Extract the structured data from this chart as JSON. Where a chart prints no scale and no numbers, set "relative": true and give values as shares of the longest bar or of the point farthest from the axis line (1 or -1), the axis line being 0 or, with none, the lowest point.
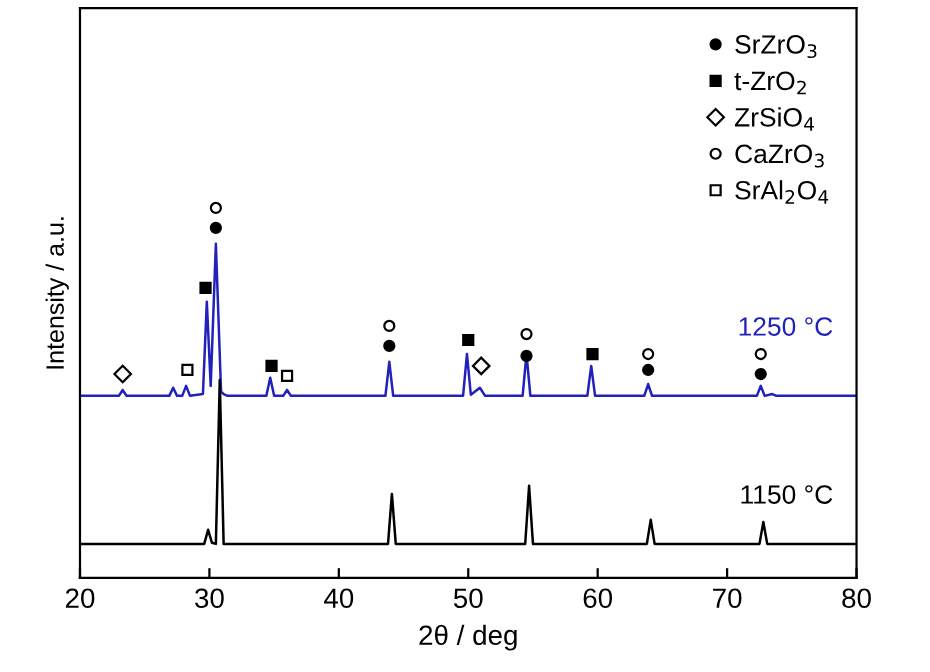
{
  "chart_data": {
    "type": "line",
    "relative": true,
    "xlabel": "2θ / deg",
    "ylabel": "Intensity / a.u.",
    "xlim": [
      20,
      80
    ],
    "xticks": [
      20,
      30,
      40,
      50,
      60,
      70,
      80
    ],
    "tick_labels": "x",
    "grid": false,
    "legend": "top right",
    "series": [
      {
        "name": "1250 °C",
        "color": "#2222bb",
        "marker": "none",
        "x": [
          20,
          23.0,
          23.3,
          23.6,
          26.9,
          27.2,
          27.5,
          27.9,
          28.2,
          28.5,
          29.5,
          29.8,
          30.1,
          30.5,
          30.9,
          31.1,
          31.4,
          34.4,
          34.7,
          35.0,
          35.7,
          36.0,
          36.3,
          43.6,
          43.9,
          44.2,
          49.6,
          49.9,
          50.2,
          50.9,
          51.3,
          54.2,
          54.5,
          54.8,
          59.2,
          59.5,
          59.8,
          63.6,
          63.9,
          64.2,
          72.3,
          72.6,
          72.9,
          73.5,
          73.8,
          80
        ],
        "values": [
          0.492,
          0.492,
          0.508,
          0.492,
          0.492,
          0.514,
          0.492,
          0.492,
          0.519,
          0.492,
          0.497,
          0.746,
          0.519,
          0.903,
          0.503,
          0.497,
          0.492,
          0.492,
          0.541,
          0.492,
          0.492,
          0.508,
          0.492,
          0.492,
          0.584,
          0.492,
          0.492,
          0.605,
          0.495,
          0.514,
          0.492,
          0.492,
          0.605,
          0.492,
          0.492,
          0.573,
          0.492,
          0.492,
          0.524,
          0.492,
          0.492,
          0.519,
          0.492,
          0.497,
          0.492,
          0.492
        ]
      },
      {
        "name": "1150 °C",
        "color": "#000000",
        "marker": "none",
        "x": [
          20,
          29.6,
          29.9,
          30.2,
          30.5,
          30.8,
          31.1,
          43.8,
          44.1,
          44.4,
          54.4,
          54.7,
          55.0,
          63.8,
          64.1,
          64.4,
          72.5,
          72.8,
          73.1,
          80
        ],
        "values": [
          0.092,
          0.092,
          0.13,
          0.095,
          0.092,
          0.535,
          0.092,
          0.092,
          0.227,
          0.092,
          0.092,
          0.249,
          0.092,
          0.092,
          0.157,
          0.092,
          0.092,
          0.151,
          0.092,
          0.092
        ]
      },
      {
        "type": "scatter",
        "name": "SrZrO$_{3}$",
        "color": "#000000",
        "marker": "circle",
        "x": [
          30.5,
          43.9,
          54.5,
          63.9,
          72.6
        ],
        "values": [
          0.946,
          0.627,
          0.6,
          0.562,
          0.551
        ]
      },
      {
        "type": "scatter",
        "name": "t-ZrO$_{2}$",
        "color": "#000000",
        "marker": "square",
        "x": [
          29.7,
          34.8,
          50.0,
          59.6
        ],
        "values": [
          0.784,
          0.573,
          0.643,
          0.605
        ]
      },
      {
        "type": "scatter",
        "name": "ZrSiO$_{4}$",
        "color": "#000000",
        "marker": "diamond",
        "x": [
          23.3,
          51.0
        ],
        "values": [
          0.551,
          0.573
        ]
      },
      {
        "type": "scatter",
        "name": "CaZrO$_{3}$",
        "color": "#000000",
        "marker": "circle",
        "x": [
          30.5,
          43.9,
          54.5,
          63.9,
          72.6
        ],
        "values": [
          1.0,
          0.681,
          0.659,
          0.605,
          0.605
        ]
      },
      {
        "type": "scatter",
        "name": "SrAl$_{2}$O$_{4}$",
        "color": "#000000",
        "marker": "square",
        "x": [
          28.3,
          36.0
        ],
        "values": [
          0.562,
          0.546
        ]
      }
    ]
  }
}
